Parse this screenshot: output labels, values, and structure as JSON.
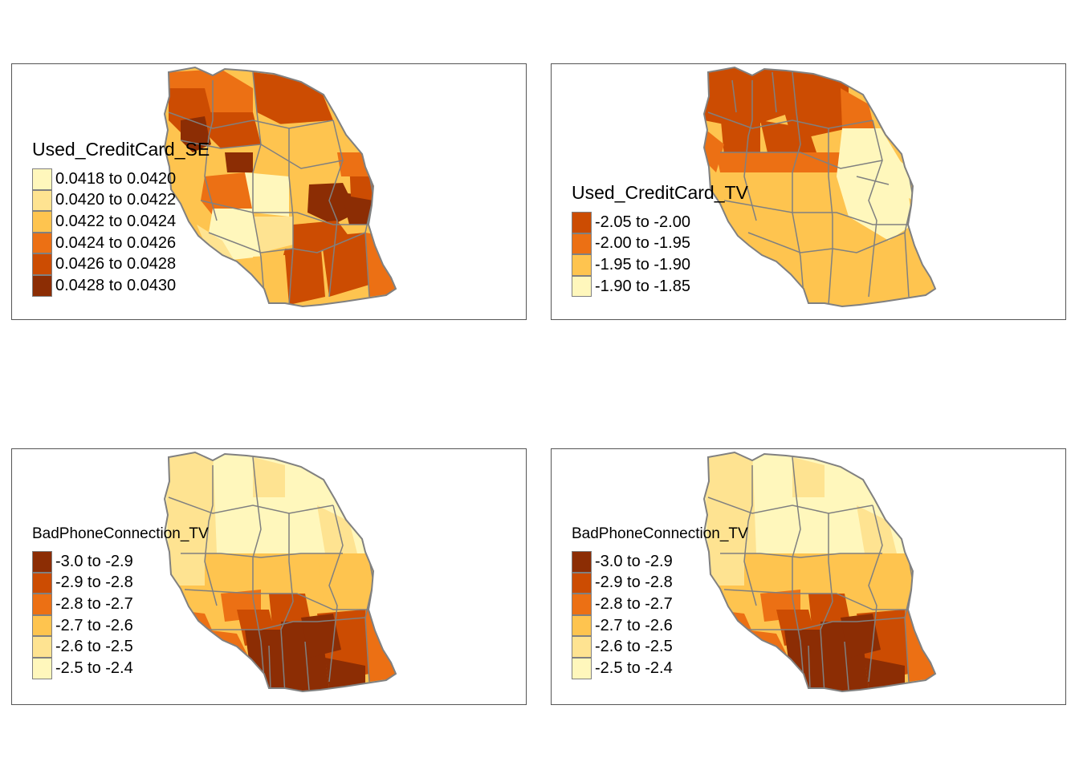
{
  "palette": {
    "c1": "#FFF7BC",
    "c2": "#FEE391",
    "c3": "#FEC44F",
    "c4": "#FE9929",
    "c5": "#EC7014",
    "c6": "#CC4C02",
    "c7": "#8C2D04",
    "border": "#808080",
    "frame": "#555555"
  },
  "panels": [
    {
      "title": "Used_CreditCard_SE",
      "legend": [
        {
          "label": "0.0418 to 0.0420",
          "color": "#FFF7BC"
        },
        {
          "label": "0.0420 to 0.0422",
          "color": "#FEE391"
        },
        {
          "label": "0.0422 to 0.0424",
          "color": "#FEC44F"
        },
        {
          "label": "0.0424 to 0.0426",
          "color": "#EC7014"
        },
        {
          "label": "0.0426 to 0.0428",
          "color": "#CC4C02"
        },
        {
          "label": "0.0428 to 0.0430",
          "color": "#8C2D04"
        }
      ]
    },
    {
      "title": "Used_CreditCard_TV",
      "legend": [
        {
          "label": "-2.05 to -2.00",
          "color": "#CC4C02"
        },
        {
          "label": "-2.00 to -1.95",
          "color": "#EC7014"
        },
        {
          "label": "-1.95 to -1.90",
          "color": "#FEC44F"
        },
        {
          "label": "-1.90 to -1.85",
          "color": "#FFF7BC"
        }
      ]
    },
    {
      "title": "BadPhoneConnection_TV",
      "legend": [
        {
          "label": "-3.0 to -2.9",
          "color": "#8C2D04"
        },
        {
          "label": "-2.9 to -2.8",
          "color": "#CC4C02"
        },
        {
          "label": "-2.8 to -2.7",
          "color": "#EC7014"
        },
        {
          "label": "-2.7 to -2.6",
          "color": "#FEC44F"
        },
        {
          "label": "-2.6 to -2.5",
          "color": "#FEE391"
        },
        {
          "label": "-2.5 to -2.4",
          "color": "#FFF7BC"
        }
      ]
    },
    {
      "title": "BadPhoneConnection_TV",
      "legend": [
        {
          "label": "-3.0 to -2.9",
          "color": "#8C2D04"
        },
        {
          "label": "-2.9 to -2.8",
          "color": "#CC4C02"
        },
        {
          "label": "-2.8 to -2.7",
          "color": "#EC7014"
        },
        {
          "label": "-2.7 to -2.6",
          "color": "#FEC44F"
        },
        {
          "label": "-2.6 to -2.5",
          "color": "#FEE391"
        },
        {
          "label": "-2.5 to -2.4",
          "color": "#FFF7BC"
        }
      ]
    }
  ]
}
